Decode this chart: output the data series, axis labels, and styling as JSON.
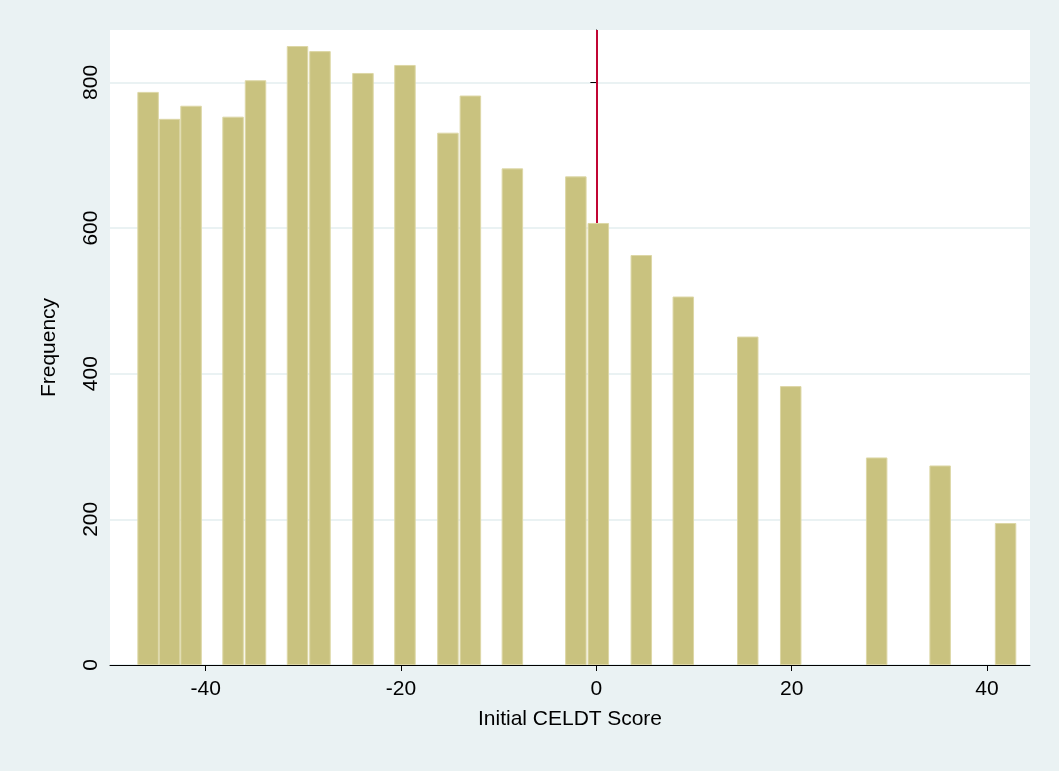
{
  "chart_data": {
    "type": "bar",
    "xlabel": "Initial CELDT Score",
    "ylabel": "Frequency",
    "x": [
      -45.9,
      -43.7,
      -41.5,
      -37.2,
      -34.9,
      -30.6,
      -28.3,
      -23.9,
      -19.6,
      -15.2,
      -12.9,
      -8.6,
      -2.1,
      0.2,
      4.6,
      8.9,
      15.5,
      19.9,
      28.7,
      35.2,
      41.9
    ],
    "values": [
      787,
      750,
      768,
      753,
      803,
      850,
      843,
      813,
      824,
      731,
      782,
      682,
      671,
      607,
      563,
      506,
      451,
      383,
      285,
      274,
      195
    ],
    "color": "#c9c27f",
    "xlim": [
      -49.8,
      44.4
    ],
    "xticks": [
      -40,
      -20,
      0,
      20,
      40
    ],
    "ylim": [
      0,
      872
    ],
    "yticks": [
      0,
      200,
      400,
      600,
      800
    ],
    "grid": "y",
    "ref_lines": [
      {
        "axis": "x",
        "value": 0,
        "color": "#c10534"
      }
    ]
  }
}
